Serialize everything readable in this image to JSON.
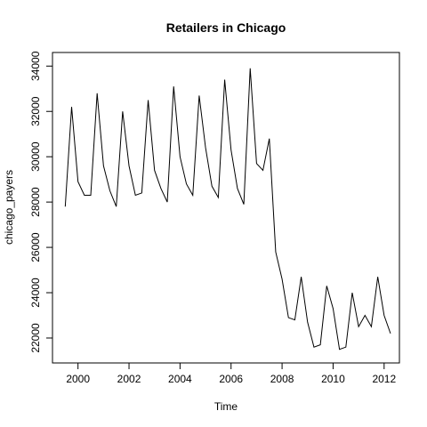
{
  "chart_data": {
    "type": "line",
    "title": "Retailers in Chicago",
    "xlabel": "Time",
    "ylabel": "chicago_payers",
    "xlim": [
      1999.0,
      2012.6
    ],
    "ylim": [
      20900,
      34600
    ],
    "x_ticks": [
      2000,
      2002,
      2004,
      2006,
      2008,
      2010,
      2012
    ],
    "y_ticks": [
      22000,
      24000,
      26000,
      28000,
      30000,
      32000,
      34000
    ],
    "grid": false,
    "series": [
      {
        "x": [
          1999.5,
          1999.75,
          2000.0,
          2000.25,
          2000.5,
          2000.75,
          2001.0,
          2001.25,
          2001.5,
          2001.75,
          2002.0,
          2002.25,
          2002.5,
          2002.75,
          2003.0,
          2003.25,
          2003.5,
          2003.75,
          2004.0,
          2004.25,
          2004.5,
          2004.75,
          2005.0,
          2005.25,
          2005.5,
          2005.75,
          2006.0,
          2006.25,
          2006.5,
          2006.75,
          2007.0,
          2007.25,
          2007.5,
          2007.75,
          2008.0,
          2008.25,
          2008.5,
          2008.75,
          2009.0,
          2009.25,
          2009.5,
          2009.75,
          2010.0,
          2010.25,
          2010.5,
          2010.75,
          2011.0,
          2011.25,
          2011.5,
          2011.75,
          2012.0,
          2012.25
        ],
        "values": [
          27800,
          32200,
          28900,
          28300,
          28300,
          32800,
          29600,
          28500,
          27800,
          32000,
          29600,
          28300,
          28400,
          32500,
          29400,
          28600,
          28000,
          33100,
          30000,
          28800,
          28300,
          32700,
          30400,
          28700,
          28200,
          33400,
          30300,
          28600,
          27900,
          33900,
          29700,
          29400,
          30800,
          25800,
          24600,
          22900,
          22800,
          24700,
          22700,
          21600,
          21700,
          24300,
          23300,
          21500,
          21600,
          24000,
          22500,
          23000,
          22500,
          24700,
          23000,
          22200
        ]
      }
    ]
  }
}
